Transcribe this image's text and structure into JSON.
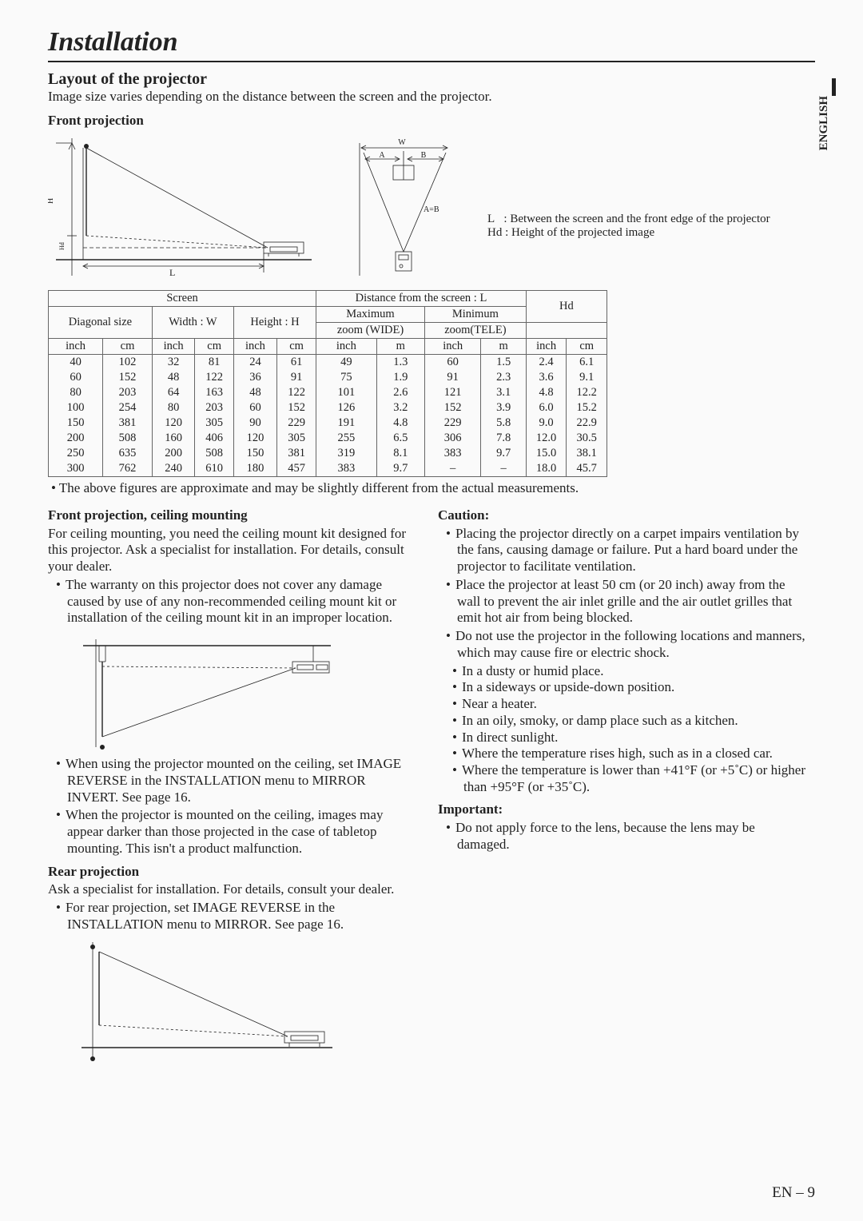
{
  "page_title": "Installation",
  "section_title": "Layout of the projector",
  "section_intro": "Image size varies depending on the distance between the screen and the projector.",
  "side_tab": "ENGLISH",
  "footer": "EN – 9",
  "front_projection": {
    "heading": "Front projection",
    "diagram_labels": {
      "H": "H",
      "Hd": "Hd",
      "L": "L",
      "W": "W",
      "A": "A",
      "B": "B",
      "AeqB": "A=B"
    },
    "legend_L": "L   : Between the screen and the front edge of the projector",
    "legend_Hd": "Hd : Height of the projected image"
  },
  "table": {
    "screen": "Screen",
    "diagonal": "Diagonal size",
    "width": "Width : W",
    "height": "Height : H",
    "distance": "Distance from the screen : L",
    "max": "Maximum",
    "zoom_wide": "zoom (WIDE)",
    "min": "Minimum",
    "zoom_tele": "zoom(TELE)",
    "hd": "Hd",
    "units": {
      "inch": "inch",
      "cm": "cm",
      "m": "m"
    },
    "rows": [
      [
        "40",
        "102",
        "32",
        "81",
        "24",
        "61",
        "49",
        "1.3",
        "60",
        "1.5",
        "2.4",
        "6.1"
      ],
      [
        "60",
        "152",
        "48",
        "122",
        "36",
        "91",
        "75",
        "1.9",
        "91",
        "2.3",
        "3.6",
        "9.1"
      ],
      [
        "80",
        "203",
        "64",
        "163",
        "48",
        "122",
        "101",
        "2.6",
        "121",
        "3.1",
        "4.8",
        "12.2"
      ],
      [
        "100",
        "254",
        "80",
        "203",
        "60",
        "152",
        "126",
        "3.2",
        "152",
        "3.9",
        "6.0",
        "15.2"
      ],
      [
        "150",
        "381",
        "120",
        "305",
        "90",
        "229",
        "191",
        "4.8",
        "229",
        "5.8",
        "9.0",
        "22.9"
      ],
      [
        "200",
        "508",
        "160",
        "406",
        "120",
        "305",
        "255",
        "6.5",
        "306",
        "7.8",
        "12.0",
        "30.5"
      ],
      [
        "250",
        "635",
        "200",
        "508",
        "150",
        "381",
        "319",
        "8.1",
        "383",
        "9.7",
        "15.0",
        "38.1"
      ],
      [
        "300",
        "762",
        "240",
        "610",
        "180",
        "457",
        "383",
        "9.7",
        "–",
        "–",
        "18.0",
        "45.7"
      ]
    ],
    "note": "The above figures are approximate and may be slightly different from the actual measurements."
  },
  "ceiling": {
    "heading": "Front projection, ceiling mounting",
    "text": "For ceiling mounting, you need the ceiling mount kit designed for this projector. Ask a specialist for installation. For details, consult your dealer.",
    "li1": "The warranty on this projector does not cover any damage caused by use of any non-recommended ceiling mount kit or installation of the ceiling mount kit in an improper location.",
    "li2": "When using the projector mounted on the ceiling, set IMAGE REVERSE in the INSTALLATION menu to MIRROR INVERT. See page 16.",
    "li3": "When the projector is mounted on the ceiling, images may appear darker than those projected in the case of tabletop mounting. This isn't a product malfunction."
  },
  "rear": {
    "heading": "Rear projection",
    "text": "Ask a specialist for installation.  For details, consult your dealer.",
    "li1": "For rear projection, set IMAGE REVERSE in the INSTALLATION menu to MIRROR.  See page 16."
  },
  "caution": {
    "heading": "Caution:",
    "li1": "Placing the projector directly on a carpet impairs ventilation by the fans, causing damage or failure. Put a hard board under the projector to facilitate ventilation.",
    "li2": "Place the projector at least 50 cm (or 20 inch) away from the wall to prevent the air inlet grille and the air outlet grilles that emit hot air from being blocked.",
    "li3": "Do not use the projector in the following locations and manners, which may cause fire or electric shock.",
    "sub": [
      "In a dusty or humid place.",
      "In a sideways or upside-down position.",
      "Near a heater.",
      "In an oily, smoky, or damp place such as a kitchen.",
      "In direct sunlight.",
      "Where the temperature rises high, such as in a closed car.",
      "Where the temperature is lower than +41°F (or +5˚C) or higher than +95°F (or +35˚C)."
    ]
  },
  "important": {
    "heading": "Important:",
    "li1": "Do not apply force to the lens, because the lens may be damaged."
  }
}
